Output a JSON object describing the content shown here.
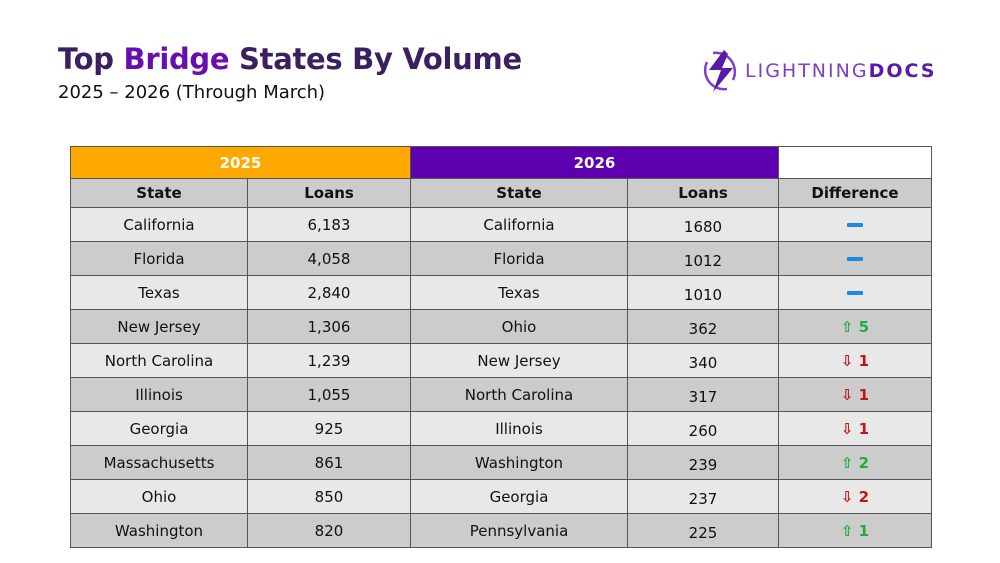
{
  "header": {
    "title_pre": "Top ",
    "title_accent": "Bridge",
    "title_post": " States By Volume",
    "subtitle": "2025 – 2026 (Through March)"
  },
  "logo": {
    "text_light": "LIGHTNING",
    "text_bold": "DOCS",
    "icon": "lightning-bolt-icon"
  },
  "colors": {
    "year_2025": "#ffa800",
    "year_2026": "#5f00b0",
    "up": "#22aa44",
    "down": "#c0141c",
    "same": "#1e88e5"
  },
  "table": {
    "year_2025": "2025",
    "year_2026": "2026",
    "columns": {
      "state_2025": "State",
      "loans_2025": "Loans",
      "state_2026": "State",
      "loans_2026": "Loans",
      "difference": "Difference"
    },
    "rows": [
      {
        "state_2025": "California",
        "loans_2025": "6,183",
        "state_2026": "California",
        "loans_2026": "1680",
        "diff_dir": "same",
        "diff": ""
      },
      {
        "state_2025": "Florida",
        "loans_2025": "4,058",
        "state_2026": "Florida",
        "loans_2026": "1012",
        "diff_dir": "same",
        "diff": ""
      },
      {
        "state_2025": "Texas",
        "loans_2025": "2,840",
        "state_2026": "Texas",
        "loans_2026": "1010",
        "diff_dir": "same",
        "diff": ""
      },
      {
        "state_2025": "New Jersey",
        "loans_2025": "1,306",
        "state_2026": "Ohio",
        "loans_2026": "362",
        "diff_dir": "up",
        "diff": "⇧ 5"
      },
      {
        "state_2025": "North Carolina",
        "loans_2025": "1,239",
        "state_2026": "New Jersey",
        "loans_2026": "340",
        "diff_dir": "down",
        "diff": "⇩ 1"
      },
      {
        "state_2025": "Illinois",
        "loans_2025": "1,055",
        "state_2026": "North Carolina",
        "loans_2026": "317",
        "diff_dir": "down",
        "diff": "⇩ 1"
      },
      {
        "state_2025": "Georgia",
        "loans_2025": "925",
        "state_2026": "Illinois",
        "loans_2026": "260",
        "diff_dir": "down",
        "diff": "⇩ 1"
      },
      {
        "state_2025": "Massachusetts",
        "loans_2025": "861",
        "state_2026": "Washington",
        "loans_2026": "239",
        "diff_dir": "up",
        "diff": "⇧ 2"
      },
      {
        "state_2025": "Ohio",
        "loans_2025": "850",
        "state_2026": "Georgia",
        "loans_2026": "237",
        "diff_dir": "down",
        "diff": "⇩ 2"
      },
      {
        "state_2025": "Washington",
        "loans_2025": "820",
        "state_2026": "Pennsylvania",
        "loans_2026": "225",
        "diff_dir": "up",
        "diff": "⇧ 1"
      }
    ]
  }
}
